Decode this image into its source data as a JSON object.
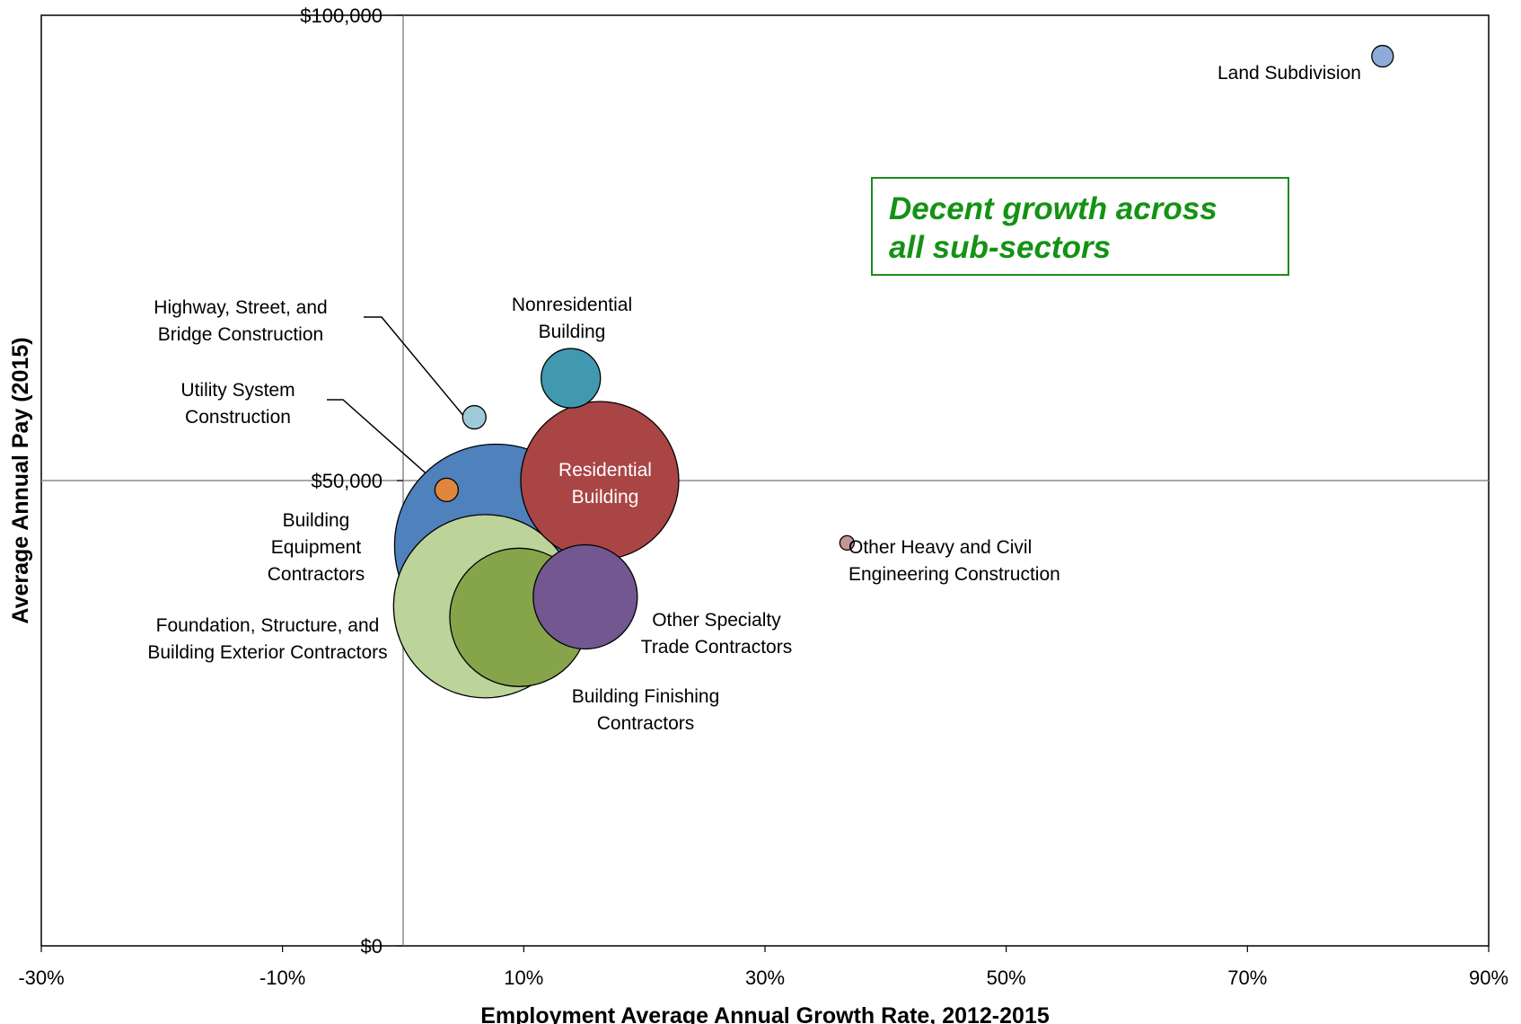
{
  "chart_data": {
    "type": "bubble",
    "xlabel": "Employment Average Annual Growth Rate, 2012-2015",
    "ylabel": "Average Annual Pay (2015)",
    "xlim": [
      -30,
      90
    ],
    "ylim": [
      0,
      100000
    ],
    "x_ticks": [
      {
        "value": -30,
        "label": "-30%"
      },
      {
        "value": -10,
        "label": "-10%"
      },
      {
        "value": 10,
        "label": "10%"
      },
      {
        "value": 30,
        "label": "30%"
      },
      {
        "value": 50,
        "label": "50%"
      },
      {
        "value": 70,
        "label": "70%"
      },
      {
        "value": 90,
        "label": "90%"
      }
    ],
    "y_ticks": [
      {
        "value": 0,
        "label": "$0"
      },
      {
        "value": 50000,
        "label": "$50,000"
      },
      {
        "value": 100000,
        "label": "$100,000"
      }
    ],
    "annotation": "Decent growth across all sub-sectors",
    "series": [
      {
        "label": "Building Equipment Contractors",
        "x": 7.7,
        "y": 43000,
        "r": 113,
        "color": "#4f81bd",
        "label_lines": [
          "Building",
          "Equipment",
          "Contractors"
        ]
      },
      {
        "label": "Foundation, Structure, and Building Exterior Contractors",
        "x": 6.8,
        "y": 36500,
        "r": 102,
        "color": "#bcd39a",
        "label_lines": [
          "Foundation, Structure, and",
          "Building Exterior Contractors"
        ]
      },
      {
        "label": "Residential Building",
        "x": 16.3,
        "y": 50000,
        "r": 88,
        "color": "#a94544",
        "label_lines": [
          "Residential",
          "Building"
        ],
        "label_inside": true
      },
      {
        "label": "Building Finishing Contractors",
        "x": 9.6,
        "y": 35300,
        "r": 77,
        "color": "#86a54b",
        "label_lines": [
          "Building Finishing",
          "Contractors"
        ]
      },
      {
        "label": "Other Specialty Trade Contractors",
        "x": 15.1,
        "y": 37500,
        "r": 58,
        "color": "#735790",
        "label_lines": [
          "Other Specialty",
          "Trade Contractors"
        ]
      },
      {
        "label": "Nonresidential Building",
        "x": 13.9,
        "y": 61000,
        "r": 33,
        "color": "#4199b0",
        "label_lines": [
          "Nonresidential",
          "Building"
        ]
      },
      {
        "label": "Highway, Street, and Bridge Construction",
        "x": 5.9,
        "y": 56800,
        "r": 13,
        "color": "#9fcad9",
        "label_lines": [
          "Highway, Street, and",
          "Bridge Construction"
        ]
      },
      {
        "label": "Utility System Construction",
        "x": 3.6,
        "y": 49000,
        "r": 13,
        "color": "#e0873c",
        "label_lines": [
          "Utility System",
          "Construction"
        ]
      },
      {
        "label": "Other Heavy and Civil Engineering Construction",
        "x": 36.8,
        "y": 43300,
        "r": 8,
        "color": "#c49597",
        "label_lines": [
          "Other Heavy and Civil",
          "Engineering Construction"
        ]
      },
      {
        "label": "Land Subdivision",
        "x": 81.2,
        "y": 95600,
        "r": 12,
        "color": "#8eaad8",
        "label_lines": [
          "Land Subdivision"
        ]
      }
    ]
  }
}
